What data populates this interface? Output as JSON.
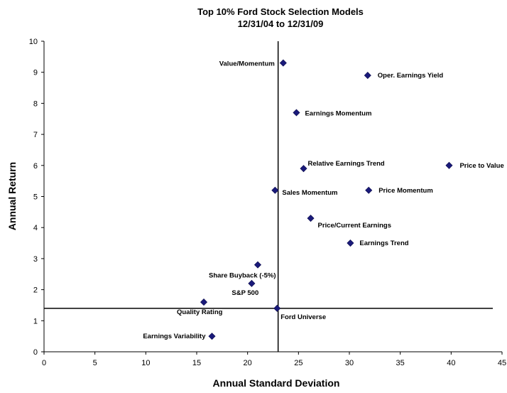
{
  "chart_data": {
    "type": "scatter",
    "title": [
      "Top 10% Ford Stock Selection Models",
      "12/31/04 to 12/31/09"
    ],
    "xlabel": "Annual Standard Deviation",
    "ylabel": "Annual Return",
    "xlim": [
      0,
      45
    ],
    "ylim": [
      0,
      10
    ],
    "x_ticks": [
      "0",
      "5",
      "10",
      "15",
      "20",
      "25",
      "30",
      "35",
      "40",
      "45"
    ],
    "y_ticks": [
      "0",
      "1",
      "2",
      "3",
      "4",
      "5",
      "6",
      "7",
      "8",
      "9",
      "10"
    ],
    "grid": false,
    "legend": "none",
    "marker_color": "#1a1a7a",
    "reference_lines": {
      "x": 23,
      "y": 1.4
    },
    "points": [
      {
        "label": "Value/Momentum",
        "x": 23.5,
        "y": 9.3
      },
      {
        "label": "Oper. Earnings Yield",
        "x": 31.8,
        "y": 8.9
      },
      {
        "label": "Earnings Momentum",
        "x": 24.8,
        "y": 7.7
      },
      {
        "label": "Relative Earnings Trend",
        "x": 25.5,
        "y": 5.9
      },
      {
        "label": "Price to Value",
        "x": 39.8,
        "y": 6.0
      },
      {
        "label": "Sales Momentum",
        "x": 22.7,
        "y": 5.2
      },
      {
        "label": "Price Momentum",
        "x": 31.9,
        "y": 5.2
      },
      {
        "label": "Price/Current Earnings",
        "x": 26.2,
        "y": 4.3
      },
      {
        "label": "Earnings Trend",
        "x": 30.1,
        "y": 3.5
      },
      {
        "label": "Share Buyback (-5%)",
        "x": 21.0,
        "y": 2.8
      },
      {
        "label": "S&P 500",
        "x": 20.4,
        "y": 2.2
      },
      {
        "label": "Quality Rating",
        "x": 15.7,
        "y": 1.6
      },
      {
        "label": "Ford Universe",
        "x": 22.9,
        "y": 1.4
      },
      {
        "label": "Earnings Variability",
        "x": 16.5,
        "y": 0.5
      }
    ]
  }
}
